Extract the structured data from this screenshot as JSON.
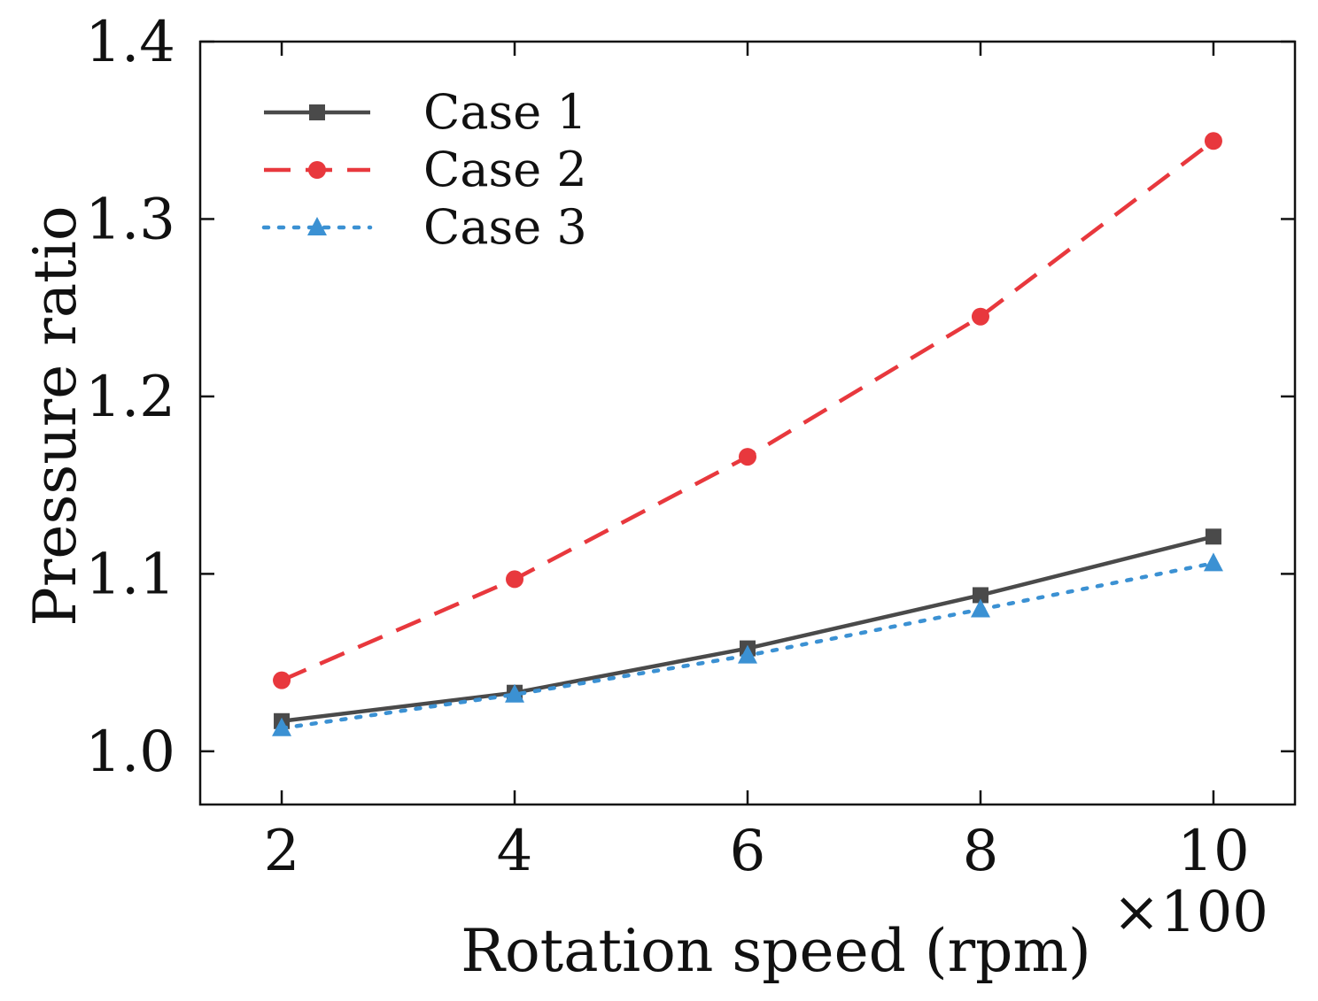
{
  "chart_data": {
    "type": "line",
    "title": "",
    "xlabel": "Rotation speed (rpm)",
    "ylabel": "Pressure ratio",
    "x_multiplier_label": "×100",
    "x": [
      2,
      4,
      6,
      8,
      10
    ],
    "xlim": [
      1.3,
      10.7
    ],
    "ylim": [
      0.97,
      1.4
    ],
    "xticks": [
      "2",
      "4",
      "6",
      "8",
      "10"
    ],
    "yticks": [
      "1.0",
      "1.1",
      "1.2",
      "1.3",
      "1.4"
    ],
    "legend_position": "top-left",
    "grid": false,
    "series": [
      {
        "name": "Case 1",
        "values": [
          1.017,
          1.033,
          1.058,
          1.088,
          1.121
        ],
        "color": "#4a4a4a",
        "linestyle": "solid",
        "marker": "square"
      },
      {
        "name": "Case 2",
        "values": [
          1.04,
          1.097,
          1.166,
          1.245,
          1.344
        ],
        "color": "#e8383d",
        "linestyle": "dashed",
        "marker": "circle"
      },
      {
        "name": "Case 3",
        "values": [
          1.013,
          1.032,
          1.054,
          1.08,
          1.106
        ],
        "color": "#3b91d3",
        "linestyle": "dotted",
        "marker": "triangle"
      }
    ]
  }
}
